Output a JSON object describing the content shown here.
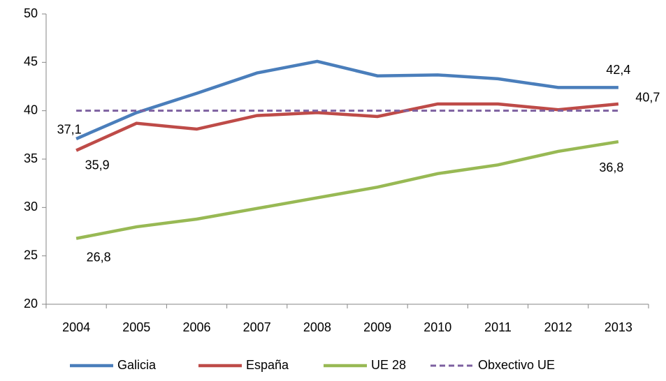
{
  "chart_data": {
    "type": "line",
    "categories": [
      "2004",
      "2005",
      "2006",
      "2007",
      "2008",
      "2009",
      "2010",
      "2011",
      "2012",
      "2013"
    ],
    "series": [
      {
        "name": "Galicia",
        "color": "#4a7ebb",
        "values": [
          37.1,
          39.8,
          41.8,
          43.9,
          45.1,
          43.6,
          43.7,
          43.3,
          42.4,
          42.4
        ],
        "value_labels": [
          "37,1",
          null,
          null,
          null,
          null,
          null,
          null,
          null,
          null,
          "42,4"
        ]
      },
      {
        "name": "España",
        "color": "#be4b48",
        "values": [
          35.9,
          38.7,
          38.1,
          39.5,
          39.8,
          39.4,
          40.7,
          40.7,
          40.1,
          40.7
        ],
        "value_labels": [
          "35,9",
          null,
          null,
          null,
          null,
          null,
          null,
          null,
          null,
          "40,7"
        ]
      },
      {
        "name": "UE 28",
        "color": "#98b954",
        "values": [
          26.8,
          28.0,
          28.8,
          29.9,
          31.0,
          32.1,
          33.5,
          34.4,
          35.8,
          36.8
        ],
        "value_labels": [
          "26,8",
          null,
          null,
          null,
          null,
          null,
          null,
          null,
          null,
          "36,8"
        ]
      },
      {
        "name": "Obxectivo UE",
        "color": "#7d60a0",
        "dashed": true,
        "values": [
          40,
          40,
          40,
          40,
          40,
          40,
          40,
          40,
          40,
          40
        ]
      }
    ],
    "ylim": [
      20,
      50
    ],
    "yticks": [
      20,
      25,
      30,
      35,
      40,
      45,
      50
    ],
    "grid": false,
    "legend": "bottom"
  }
}
